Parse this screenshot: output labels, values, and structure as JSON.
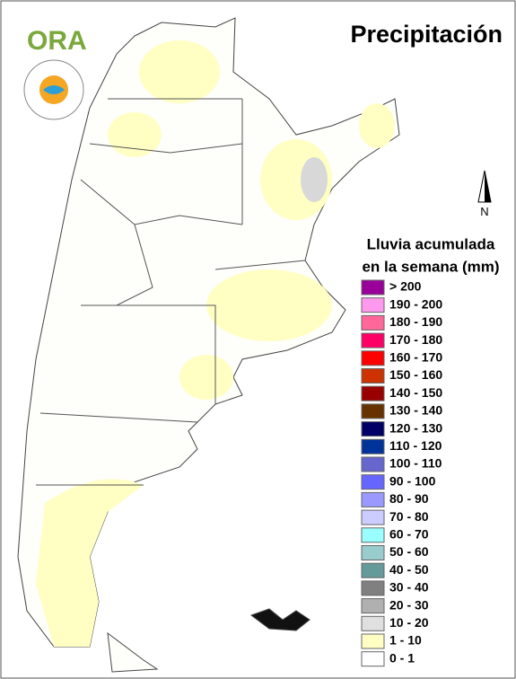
{
  "title": "Precipitación",
  "logo": "ORA",
  "north": "N",
  "legend": {
    "title": [
      "Lluvia acumulada",
      "en la semana (mm)"
    ],
    "items": [
      {
        "label": "> 200",
        "color": "#990099"
      },
      {
        "label": "190 - 200",
        "color": "#ff99ee"
      },
      {
        "label": "180 - 190",
        "color": "#ff6699"
      },
      {
        "label": "170 - 180",
        "color": "#ff0066"
      },
      {
        "label": "160 - 170",
        "color": "#ff0000"
      },
      {
        "label": "150 - 160",
        "color": "#cc3300"
      },
      {
        "label": "140 - 150",
        "color": "#990000"
      },
      {
        "label": "130 - 140",
        "color": "#663300"
      },
      {
        "label": "120 - 130",
        "color": "#000066"
      },
      {
        "label": "110 - 120",
        "color": "#003399"
      },
      {
        "label": "100 - 110",
        "color": "#6666cc"
      },
      {
        "label": "90 - 100",
        "color": "#6666ff"
      },
      {
        "label": "80 - 90",
        "color": "#9999ff"
      },
      {
        "label": "70 - 80",
        "color": "#ccccff"
      },
      {
        "label": "60 - 70",
        "color": "#99ffff"
      },
      {
        "label": "50 - 60",
        "color": "#99cccc"
      },
      {
        "label": "40 - 50",
        "color": "#669999"
      },
      {
        "label": "30 - 40",
        "color": "#808080"
      },
      {
        "label": "20 - 30",
        "color": "#b0b0b0"
      },
      {
        "label": "10 - 20",
        "color": "#e0e0e0"
      },
      {
        "label": "1 - 10",
        "color": "#ffffc4"
      },
      {
        "label": "0 - 1",
        "color": "#ffffff"
      }
    ]
  }
}
